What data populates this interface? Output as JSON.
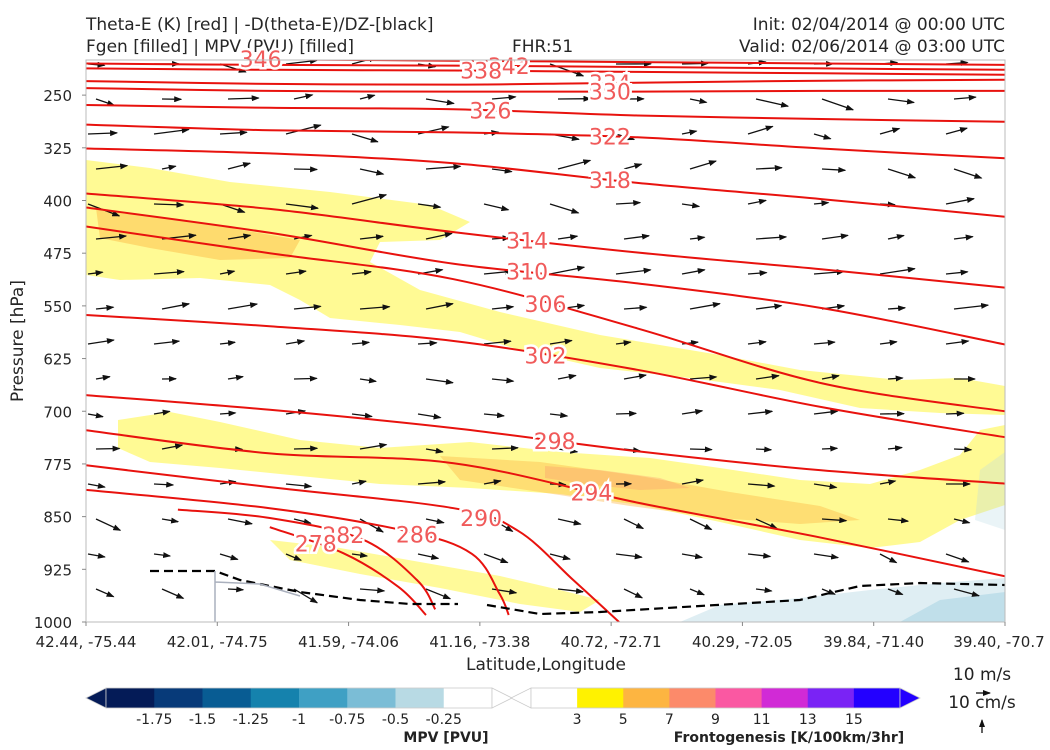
{
  "header": {
    "title_line1": "Theta-E (K) [red] | -D(theta-E)/DZ-[black]",
    "title_line2": "Fgen [filled] | MPV (PVU) [filled]",
    "fhr": "FHR:51",
    "init": "Init: 02/04/2014 @ 00:00 UTC",
    "valid": "Valid: 02/06/2014 @ 03:00 UTC"
  },
  "chart_data": {
    "type": "cross-section",
    "xlabel": "Latitude,Longitude",
    "ylabel": "Pressure [hPa]",
    "ylim": [
      1000,
      200
    ],
    "x_ticks": [
      "42.44, -75.44",
      "42.01, -74.75",
      "41.59, -74.06",
      "41.16, -73.38",
      "40.72, -72.71",
      "40.29, -72.05",
      "39.84, -71.40",
      "39.40, -70.7"
    ],
    "y_ticks": [
      250,
      325,
      400,
      475,
      550,
      625,
      700,
      775,
      850,
      925,
      1000
    ],
    "theta_e_contours": [
      {
        "label": "346",
        "points": [
          [
            0,
            196
          ],
          [
            0.2,
            199
          ],
          [
            0.4,
            201
          ],
          [
            0.6,
            203
          ],
          [
            0.8,
            205
          ],
          [
            1,
            207
          ]
        ]
      },
      {
        "label": "342",
        "points": [
          [
            0,
            205
          ],
          [
            0.2,
            207
          ],
          [
            0.4,
            208
          ],
          [
            0.6,
            210
          ],
          [
            0.8,
            212
          ],
          [
            1,
            214
          ]
        ]
      },
      {
        "label": "338",
        "points": [
          [
            0,
            212
          ],
          [
            0.2,
            214
          ],
          [
            0.4,
            215
          ],
          [
            0.6,
            217
          ],
          [
            0.8,
            219
          ],
          [
            1,
            221
          ]
        ]
      },
      {
        "label": "334",
        "points": [
          [
            0,
            230
          ],
          [
            0.2,
            234
          ],
          [
            0.4,
            235
          ],
          [
            0.55,
            233
          ],
          [
            0.75,
            230
          ],
          [
            1,
            228
          ]
        ]
      },
      {
        "label": "330",
        "points": [
          [
            0,
            240
          ],
          [
            0.2,
            244
          ],
          [
            0.4,
            245
          ],
          [
            0.6,
            245
          ],
          [
            0.8,
            244
          ],
          [
            1,
            244
          ]
        ]
      },
      {
        "label": "326",
        "points": [
          [
            0,
            264
          ],
          [
            0.2,
            268
          ],
          [
            0.4,
            270
          ],
          [
            0.6,
            279
          ],
          [
            0.8,
            284
          ],
          [
            1,
            288
          ]
        ]
      },
      {
        "label": "322",
        "points": [
          [
            0,
            292
          ],
          [
            0.2,
            300
          ],
          [
            0.4,
            303
          ],
          [
            0.6,
            310
          ],
          [
            0.8,
            326
          ],
          [
            1,
            340
          ]
        ]
      },
      {
        "label": "318",
        "points": [
          [
            0,
            326
          ],
          [
            0.2,
            333
          ],
          [
            0.4,
            347
          ],
          [
            0.6,
            375
          ],
          [
            0.8,
            398
          ],
          [
            1,
            423
          ]
        ]
      },
      {
        "label": "314",
        "points": [
          [
            0,
            390
          ],
          [
            0.2,
            412
          ],
          [
            0.4,
            445
          ],
          [
            0.6,
            474
          ],
          [
            0.8,
            498
          ],
          [
            1,
            524
          ]
        ]
      },
      {
        "label": "310",
        "points": [
          [
            0,
            410
          ],
          [
            0.2,
            446
          ],
          [
            0.4,
            490
          ],
          [
            0.6,
            518
          ],
          [
            0.8,
            553
          ],
          [
            1,
            605
          ]
        ]
      },
      {
        "label": "306",
        "points": [
          [
            0,
            437
          ],
          [
            0.2,
            475
          ],
          [
            0.4,
            512
          ],
          [
            0.6,
            582
          ],
          [
            0.8,
            660
          ],
          [
            1,
            700
          ]
        ]
      },
      {
        "label": "302",
        "points": [
          [
            0,
            563
          ],
          [
            0.2,
            579
          ],
          [
            0.4,
            600
          ],
          [
            0.6,
            641
          ],
          [
            0.8,
            694
          ],
          [
            1,
            737
          ]
        ]
      },
      {
        "label": "298",
        "points": [
          [
            0,
            677
          ],
          [
            0.2,
            698
          ],
          [
            0.4,
            724
          ],
          [
            0.6,
            757
          ],
          [
            0.8,
            784
          ],
          [
            1,
            803
          ]
        ]
      },
      {
        "label": "294",
        "points": [
          [
            0,
            727
          ],
          [
            0.2,
            760
          ],
          [
            0.4,
            774
          ],
          [
            0.6,
            830
          ],
          [
            0.8,
            880
          ],
          [
            1,
            935
          ]
        ]
      },
      {
        "label": "290",
        "points": [
          [
            0,
            777
          ],
          [
            0.2,
            808
          ],
          [
            0.4,
            838
          ],
          [
            0.47,
            870
          ],
          [
            0.53,
            940
          ],
          [
            0.58,
            1000
          ]
        ]
      },
      {
        "label": "286",
        "points": [
          [
            0,
            812
          ],
          [
            0.2,
            838
          ],
          [
            0.35,
            871
          ],
          [
            0.42,
            903
          ],
          [
            0.45,
            960
          ],
          [
            0.46,
            990
          ]
        ]
      },
      {
        "label": "282",
        "points": [
          [
            0.1,
            840
          ],
          [
            0.2,
            852
          ],
          [
            0.3,
            882
          ],
          [
            0.36,
            940
          ],
          [
            0.38,
            982
          ]
        ]
      },
      {
        "label": "278",
        "points": [
          [
            0.2,
            865
          ],
          [
            0.28,
            902
          ],
          [
            0.34,
            950
          ],
          [
            0.37,
            990
          ]
        ]
      }
    ],
    "fgen_colorbar": {
      "label": "Frontogenesis [K/100km/3hr]",
      "levels": [
        3,
        5,
        7,
        9,
        11,
        13,
        15
      ],
      "colors": [
        "#ffffff",
        "#fff200",
        "#fdb541",
        "#fc8a6a",
        "#fa58a2",
        "#d12ad6",
        "#7a23f5",
        "#2300ff"
      ]
    },
    "mpv_colorbar": {
      "label": "MPV [PVU]",
      "levels": [
        -1.75,
        -1.5,
        -1.25,
        -1.0,
        -0.75,
        -0.5,
        -0.25
      ],
      "colors": [
        "#041b57",
        "#073a79",
        "#085c93",
        "#1582ad",
        "#3fa0c4",
        "#7bbdd6",
        "#b8dae4",
        "#ffffff"
      ]
    },
    "vector_legend": {
      "u_label": "10 m/s",
      "w_label": "10 cm/s"
    }
  }
}
